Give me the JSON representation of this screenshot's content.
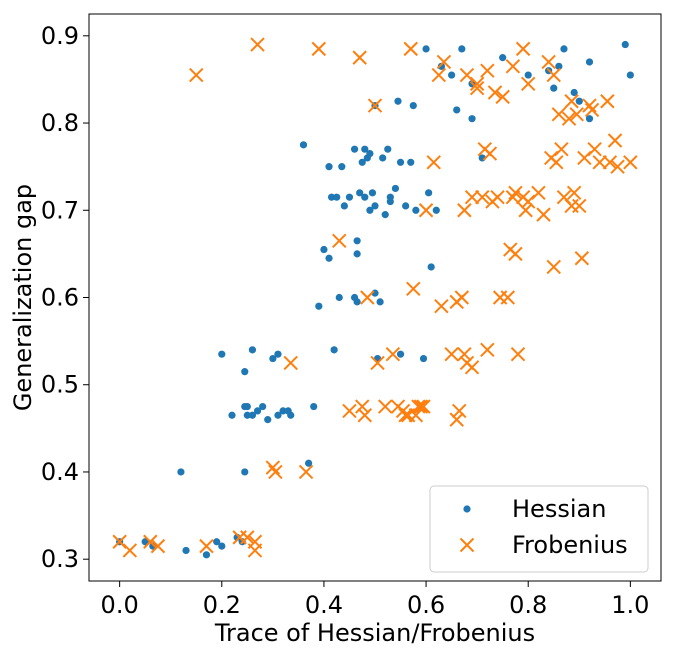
{
  "chart_data": {
    "type": "scatter",
    "title": "",
    "xlabel": "Trace of Hessian/Frobenius",
    "ylabel": "Generalization gap",
    "xlim": [
      -0.06,
      1.06
    ],
    "ylim": [
      0.275,
      0.925
    ],
    "xticks": [
      0.0,
      0.2,
      0.4,
      0.6,
      0.8,
      1.0
    ],
    "xtick_labels": [
      "0.0",
      "0.2",
      "0.4",
      "0.6",
      "0.8",
      "1.0"
    ],
    "yticks": [
      0.3,
      0.4,
      0.5,
      0.6,
      0.7,
      0.8,
      0.9
    ],
    "ytick_labels": [
      "0.3",
      "0.4",
      "0.5",
      "0.6",
      "0.7",
      "0.8",
      "0.9"
    ],
    "grid": false,
    "legend_position": "lower-right",
    "series": [
      {
        "name": "Hessian",
        "marker": "dot",
        "color": "#1f77b4",
        "points": [
          [
            0.0,
            0.32
          ],
          [
            0.05,
            0.32
          ],
          [
            0.065,
            0.315
          ],
          [
            0.12,
            0.4
          ],
          [
            0.13,
            0.31
          ],
          [
            0.17,
            0.305
          ],
          [
            0.19,
            0.32
          ],
          [
            0.2,
            0.535
          ],
          [
            0.2,
            0.315
          ],
          [
            0.22,
            0.465
          ],
          [
            0.23,
            0.325
          ],
          [
            0.24,
            0.32
          ],
          [
            0.245,
            0.4
          ],
          [
            0.245,
            0.515
          ],
          [
            0.245,
            0.475
          ],
          [
            0.25,
            0.475
          ],
          [
            0.25,
            0.465
          ],
          [
            0.26,
            0.54
          ],
          [
            0.26,
            0.465
          ],
          [
            0.27,
            0.47
          ],
          [
            0.28,
            0.475
          ],
          [
            0.29,
            0.46
          ],
          [
            0.3,
            0.53
          ],
          [
            0.31,
            0.535
          ],
          [
            0.31,
            0.465
          ],
          [
            0.32,
            0.47
          ],
          [
            0.33,
            0.47
          ],
          [
            0.335,
            0.465
          ],
          [
            0.37,
            0.41
          ],
          [
            0.38,
            0.475
          ],
          [
            0.36,
            0.775
          ],
          [
            0.39,
            0.59
          ],
          [
            0.4,
            0.655
          ],
          [
            0.41,
            0.75
          ],
          [
            0.41,
            0.645
          ],
          [
            0.415,
            0.715
          ],
          [
            0.42,
            0.54
          ],
          [
            0.425,
            0.715
          ],
          [
            0.43,
            0.6
          ],
          [
            0.435,
            0.75
          ],
          [
            0.44,
            0.705
          ],
          [
            0.45,
            0.715
          ],
          [
            0.46,
            0.77
          ],
          [
            0.46,
            0.6
          ],
          [
            0.465,
            0.595
          ],
          [
            0.465,
            0.665
          ],
          [
            0.465,
            0.65
          ],
          [
            0.47,
            0.72
          ],
          [
            0.475,
            0.755
          ],
          [
            0.48,
            0.77
          ],
          [
            0.48,
            0.715
          ],
          [
            0.485,
            0.76
          ],
          [
            0.49,
            0.765
          ],
          [
            0.49,
            0.7
          ],
          [
            0.495,
            0.72
          ],
          [
            0.5,
            0.605
          ],
          [
            0.5,
            0.705
          ],
          [
            0.5,
            0.82
          ],
          [
            0.505,
            0.53
          ],
          [
            0.51,
            0.595
          ],
          [
            0.515,
            0.76
          ],
          [
            0.52,
            0.695
          ],
          [
            0.525,
            0.77
          ],
          [
            0.53,
            0.71
          ],
          [
            0.53,
            0.715
          ],
          [
            0.54,
            0.725
          ],
          [
            0.545,
            0.825
          ],
          [
            0.55,
            0.755
          ],
          [
            0.55,
            0.535
          ],
          [
            0.56,
            0.705
          ],
          [
            0.57,
            0.755
          ],
          [
            0.575,
            0.82
          ],
          [
            0.58,
            0.7
          ],
          [
            0.595,
            0.53
          ],
          [
            0.6,
            0.885
          ],
          [
            0.605,
            0.72
          ],
          [
            0.61,
            0.635
          ],
          [
            0.62,
            0.7
          ],
          [
            0.63,
            0.865
          ],
          [
            0.65,
            0.855
          ],
          [
            0.66,
            0.815
          ],
          [
            0.67,
            0.885
          ],
          [
            0.69,
            0.845
          ],
          [
            0.69,
            0.805
          ],
          [
            0.71,
            0.76
          ],
          [
            0.75,
            0.875
          ],
          [
            0.8,
            0.855
          ],
          [
            0.84,
            0.86
          ],
          [
            0.85,
            0.84
          ],
          [
            0.86,
            0.865
          ],
          [
            0.87,
            0.885
          ],
          [
            0.89,
            0.835
          ],
          [
            0.9,
            0.825
          ],
          [
            0.92,
            0.87
          ],
          [
            0.92,
            0.805
          ],
          [
            0.99,
            0.89
          ],
          [
            1.0,
            0.855
          ]
        ]
      },
      {
        "name": "Frobenius",
        "marker": "x",
        "color": "#ff7f0e",
        "points": [
          [
            0.0,
            0.32
          ],
          [
            0.02,
            0.31
          ],
          [
            0.06,
            0.32
          ],
          [
            0.075,
            0.315
          ],
          [
            0.15,
            0.855
          ],
          [
            0.17,
            0.315
          ],
          [
            0.235,
            0.325
          ],
          [
            0.25,
            0.325
          ],
          [
            0.265,
            0.32
          ],
          [
            0.265,
            0.31
          ],
          [
            0.27,
            0.89
          ],
          [
            0.3,
            0.405
          ],
          [
            0.305,
            0.4
          ],
          [
            0.335,
            0.525
          ],
          [
            0.365,
            0.4
          ],
          [
            0.39,
            0.885
          ],
          [
            0.43,
            0.665
          ],
          [
            0.45,
            0.47
          ],
          [
            0.47,
            0.875
          ],
          [
            0.475,
            0.475
          ],
          [
            0.48,
            0.465
          ],
          [
            0.485,
            0.6
          ],
          [
            0.5,
            0.82
          ],
          [
            0.505,
            0.525
          ],
          [
            0.52,
            0.475
          ],
          [
            0.535,
            0.535
          ],
          [
            0.545,
            0.475
          ],
          [
            0.555,
            0.47
          ],
          [
            0.56,
            0.465
          ],
          [
            0.565,
            0.465
          ],
          [
            0.57,
            0.885
          ],
          [
            0.575,
            0.61
          ],
          [
            0.58,
            0.465
          ],
          [
            0.585,
            0.475
          ],
          [
            0.59,
            0.475
          ],
          [
            0.595,
            0.475
          ],
          [
            0.6,
            0.7
          ],
          [
            0.615,
            0.755
          ],
          [
            0.625,
            0.855
          ],
          [
            0.63,
            0.59
          ],
          [
            0.635,
            0.87
          ],
          [
            0.65,
            0.535
          ],
          [
            0.66,
            0.595
          ],
          [
            0.66,
            0.46
          ],
          [
            0.665,
            0.47
          ],
          [
            0.67,
            0.6
          ],
          [
            0.675,
            0.535
          ],
          [
            0.675,
            0.7
          ],
          [
            0.68,
            0.525
          ],
          [
            0.68,
            0.855
          ],
          [
            0.69,
            0.715
          ],
          [
            0.69,
            0.52
          ],
          [
            0.7,
            0.845
          ],
          [
            0.7,
            0.84
          ],
          [
            0.71,
            0.715
          ],
          [
            0.715,
            0.77
          ],
          [
            0.72,
            0.54
          ],
          [
            0.72,
            0.86
          ],
          [
            0.725,
            0.765
          ],
          [
            0.73,
            0.71
          ],
          [
            0.735,
            0.835
          ],
          [
            0.74,
            0.715
          ],
          [
            0.745,
            0.6
          ],
          [
            0.75,
            0.83
          ],
          [
            0.76,
            0.6
          ],
          [
            0.765,
            0.655
          ],
          [
            0.77,
            0.715
          ],
          [
            0.77,
            0.865
          ],
          [
            0.775,
            0.65
          ],
          [
            0.775,
            0.72
          ],
          [
            0.78,
            0.535
          ],
          [
            0.79,
            0.885
          ],
          [
            0.79,
            0.715
          ],
          [
            0.795,
            0.7
          ],
          [
            0.8,
            0.845
          ],
          [
            0.8,
            0.71
          ],
          [
            0.82,
            0.72
          ],
          [
            0.83,
            0.695
          ],
          [
            0.84,
            0.87
          ],
          [
            0.845,
            0.76
          ],
          [
            0.85,
            0.855
          ],
          [
            0.85,
            0.635
          ],
          [
            0.855,
            0.755
          ],
          [
            0.86,
            0.81
          ],
          [
            0.865,
            0.77
          ],
          [
            0.87,
            0.715
          ],
          [
            0.88,
            0.805
          ],
          [
            0.885,
            0.825
          ],
          [
            0.885,
            0.705
          ],
          [
            0.89,
            0.72
          ],
          [
            0.895,
            0.81
          ],
          [
            0.9,
            0.705
          ],
          [
            0.905,
            0.645
          ],
          [
            0.91,
            0.76
          ],
          [
            0.92,
            0.82
          ],
          [
            0.925,
            0.815
          ],
          [
            0.93,
            0.77
          ],
          [
            0.94,
            0.755
          ],
          [
            0.955,
            0.825
          ],
          [
            0.96,
            0.755
          ],
          [
            0.97,
            0.78
          ],
          [
            0.975,
            0.75
          ],
          [
            1.0,
            0.755
          ]
        ]
      }
    ]
  }
}
